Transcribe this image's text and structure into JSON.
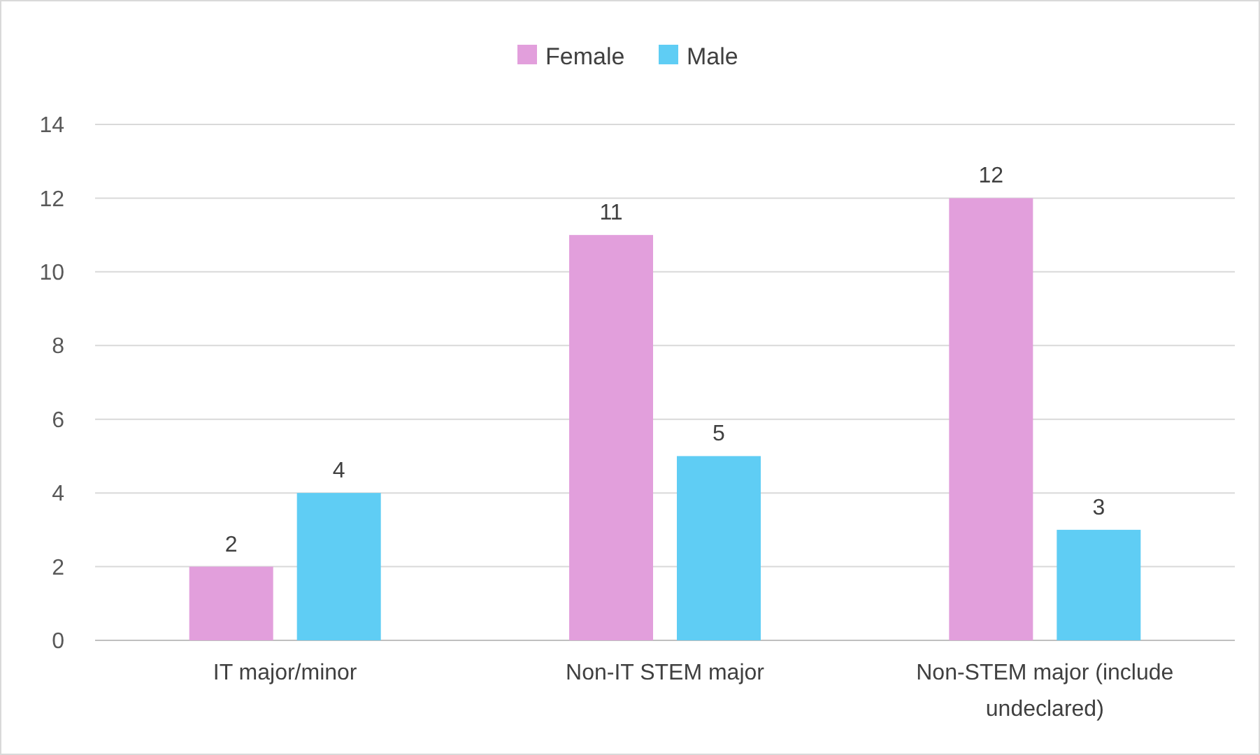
{
  "chart_data": {
    "type": "bar",
    "categories": [
      "IT major/minor",
      "Non-IT STEM major",
      "Non-STEM major (include undeclared)"
    ],
    "series": [
      {
        "name": "Female",
        "color": "#e29fdc",
        "values": [
          2,
          11,
          12
        ]
      },
      {
        "name": "Male",
        "color": "#5fcdf4",
        "values": [
          4,
          5,
          3
        ]
      }
    ],
    "ylim": [
      0,
      14
    ],
    "yticks": [
      0,
      2,
      4,
      6,
      8,
      10,
      12,
      14
    ],
    "grid": "y",
    "legend": "top",
    "data_labels": true
  }
}
